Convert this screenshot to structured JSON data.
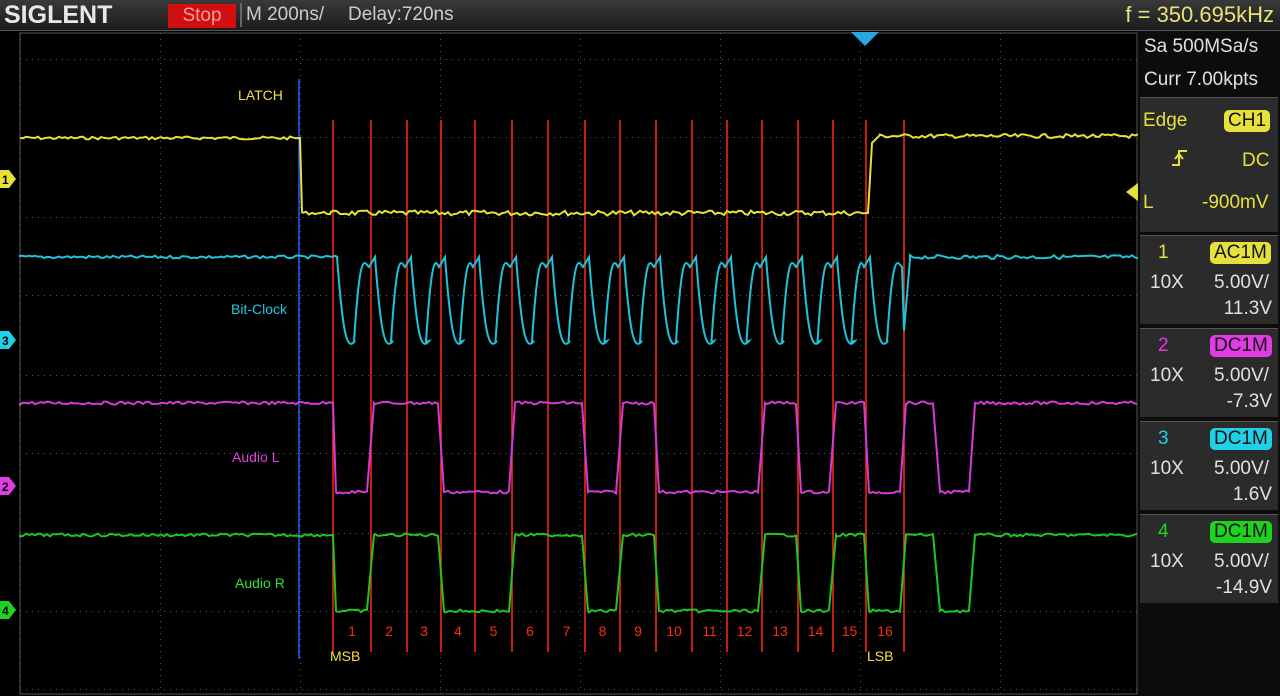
{
  "topbar": {
    "brand": "SIGLENT",
    "run_state": "Stop",
    "timebase": "M 200ns/",
    "delay": "Delay:720ns",
    "frequency": "f = 350.695kHz"
  },
  "acquisition": {
    "sample_rate": "Sa 500MSa/s",
    "memory": "Curr 7.00kpts"
  },
  "trigger": {
    "type": "Edge",
    "source": "CH1",
    "slope_icon": "rising-edge-icon",
    "coupling": "DC",
    "level_prefix": "L",
    "level": "-900mV"
  },
  "channels": [
    {
      "num": "1",
      "coupling": "AC1M",
      "probe": "10X",
      "scale": "5.00V/",
      "offset": "11.3V",
      "color": "#e6e13a"
    },
    {
      "num": "2",
      "coupling": "DC1M",
      "probe": "10X",
      "scale": "5.00V/",
      "offset": "-7.3V",
      "color": "#e03ce6"
    },
    {
      "num": "3",
      "coupling": "DC1M",
      "probe": "10X",
      "scale": "5.00V/",
      "offset": "1.6V",
      "color": "#20d0e6"
    },
    {
      "num": "4",
      "coupling": "DC1M",
      "probe": "10X",
      "scale": "5.00V/",
      "offset": "-14.9V",
      "color": "#1ed31e"
    }
  ],
  "annotations": {
    "latch": "LATCH",
    "bit_clock": "Bit-Clock",
    "audio_l": "Audio L",
    "audio_r": "Audio R",
    "msb": "MSB",
    "lsb": "LSB",
    "bits": [
      "1",
      "2",
      "3",
      "4",
      "5",
      "6",
      "7",
      "8",
      "9",
      "10",
      "11",
      "12",
      "13",
      "14",
      "15",
      "16"
    ]
  },
  "colors": {
    "marker_lines": "#ff2a10",
    "latch_line": "#2060ff",
    "label_yellow": "#f0e040",
    "label_cyan": "#20c8e0",
    "label_magenta": "#e040e0",
    "label_green": "#30e030"
  }
}
